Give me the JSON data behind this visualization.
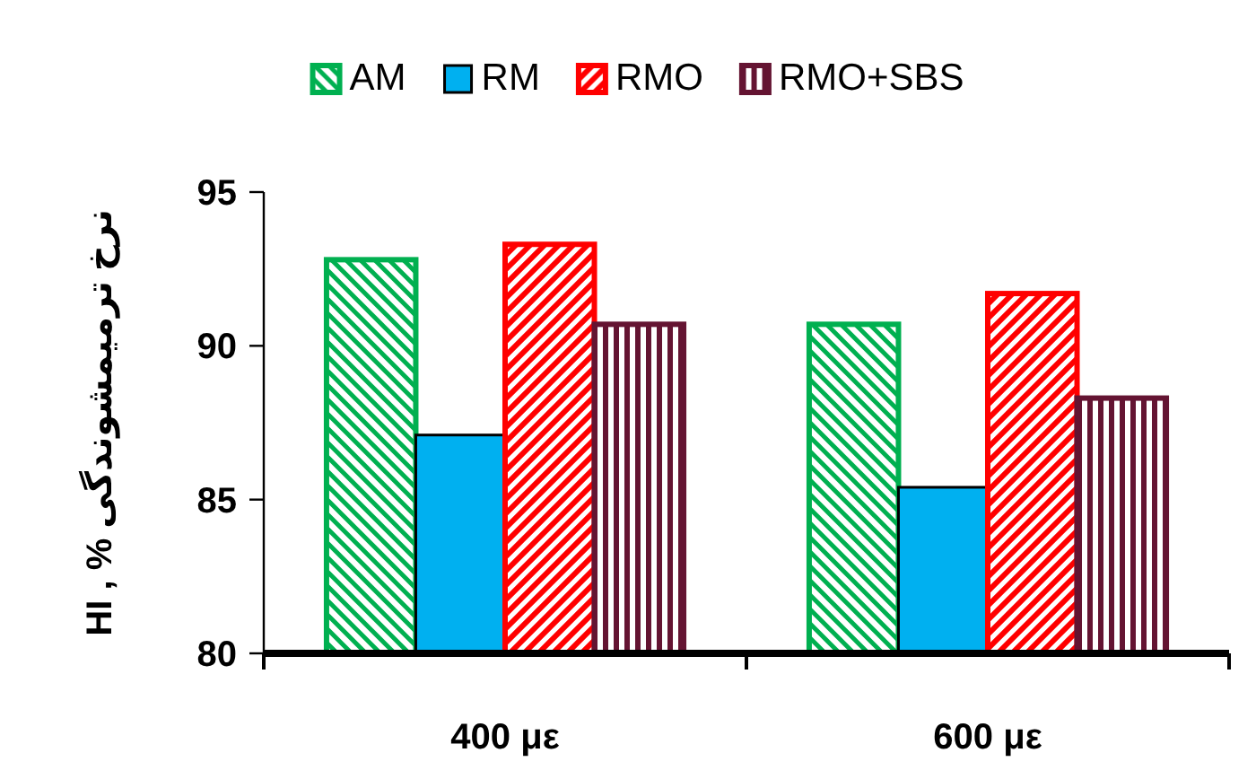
{
  "chart_data": {
    "type": "bar",
    "categories": [
      "400 με",
      "600 με"
    ],
    "ylabel": "HI , % نرخ ترمیمشوندگی",
    "ylim": [
      80,
      95
    ],
    "yticks": [
      80,
      85,
      90,
      95
    ],
    "legend": "top",
    "series": [
      {
        "name": "AM",
        "color": "#00b050",
        "values": [
          92.8,
          90.7
        ]
      },
      {
        "name": "RM",
        "color": "#00b0f0",
        "values": [
          87.1,
          85.4
        ]
      },
      {
        "name": "RMO",
        "color": "#ff0000",
        "values": [
          93.3,
          91.7
        ]
      },
      {
        "name": "RMO+SBS",
        "color": "#641432",
        "values": [
          90.7,
          88.3
        ]
      }
    ]
  }
}
